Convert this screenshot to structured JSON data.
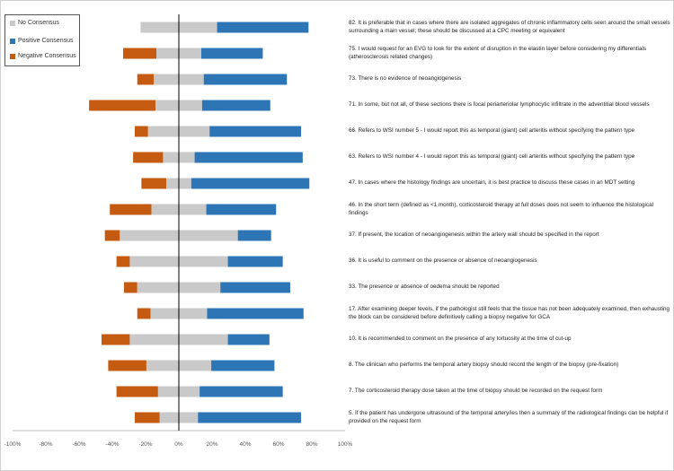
{
  "chart_data": {
    "type": "bar",
    "orientation": "horizontal",
    "stacked": "diverging",
    "xlim": [
      -100,
      100
    ],
    "xticks": [
      "-100%",
      "-80%",
      "-60%",
      "-40%",
      "-20%",
      "0%",
      "20%",
      "40%",
      "60%",
      "80%",
      "100%"
    ],
    "legend": [
      {
        "name": "No Consensus",
        "color": "#c9c9c9"
      },
      {
        "name": "Positive Consensus",
        "color": "#2e75b6"
      },
      {
        "name": "Negative Consensus",
        "color": "#c55a11"
      }
    ],
    "legend_position": "top-left",
    "rows": [
      {
        "label": "82. It is preferable that in cases where there are isolated aggregates of chronic inflammatory cells seen around the small vessels surrounding a main vessel; these should be discussed at a CPC meeting or equivalent",
        "negative": 0,
        "no_consensus": 46,
        "positive": 55
      },
      {
        "label": "75. I would request for an EVG to look for the extent of disruption in the elastin layer before considering my differentials (atherosclerosis related changes)",
        "negative": 20,
        "no_consensus": 27,
        "positive": 37
      },
      {
        "label": "73. There is no evidence of neoangiogenesis",
        "negative": 10,
        "no_consensus": 30,
        "positive": 50
      },
      {
        "label": "71. In some, but not all, of these sections there is focal periarteriolar lymphocytic infiltrate in the adventitial blood vessels",
        "negative": 40,
        "no_consensus": 28,
        "positive": 41
      },
      {
        "label": "66. Refers to WSI number 5 - I would report this as temporal (giant) cell arteritis without specifying the pattern type",
        "negative": 8,
        "no_consensus": 37,
        "positive": 55
      },
      {
        "label": "63. Refers to WSI number 4 - I would report this as temporal (giant) cell arteritis without specifying the pattern type",
        "negative": 18,
        "no_consensus": 19,
        "positive": 65
      },
      {
        "label": "47. In cases where the histology findings are uncertain, it is best practice to discuss these cases in an MDT setting",
        "negative": 15,
        "no_consensus": 15,
        "positive": 71
      },
      {
        "label": "46. In the short term (defined as <1 month), corticosteroid therapy at full doses does not seem to influence the histological findings",
        "negative": 25,
        "no_consensus": 33,
        "positive": 42
      },
      {
        "label": "37. If present, the location of neoangiogenesis within the artery wall should be specified in the report",
        "negative": 9,
        "no_consensus": 71,
        "positive": 20
      },
      {
        "label": "36. It is useful to comment on the presence or absence of neoangiogenesis",
        "negative": 8,
        "no_consensus": 59,
        "positive": 33
      },
      {
        "label": "33. The presence or absence of oedema should be reported",
        "negative": 8,
        "no_consensus": 50,
        "positive": 42
      },
      {
        "label": "17. After examining deeper levels, if the pathologist still feels that the tissue has not been adequately examined, then exhausting the block can be considered before definitively calling a biopsy negative for GCA",
        "negative": 8,
        "no_consensus": 34,
        "positive": 58
      },
      {
        "label": "10. It is recommended to comment on the presence of any tortuosity at the time of cut-up",
        "negative": 17,
        "no_consensus": 59,
        "positive": 25
      },
      {
        "label": "8. The clinician who performs the temporal artery biopsy should record the length of the biopsy (pre-fixation)",
        "negative": 23,
        "no_consensus": 39,
        "positive": 38
      },
      {
        "label": "7. The corticosteroid therapy dose taken at the time of biopsy should be recorded on the request form",
        "negative": 25,
        "no_consensus": 25,
        "positive": 50
      },
      {
        "label": "5. If the patient has undergone ultrasound of the temporal artery/ies then a summary of the radiological findings can be helpful if provided on the request form",
        "negative": 15,
        "no_consensus": 23,
        "positive": 62
      }
    ]
  }
}
